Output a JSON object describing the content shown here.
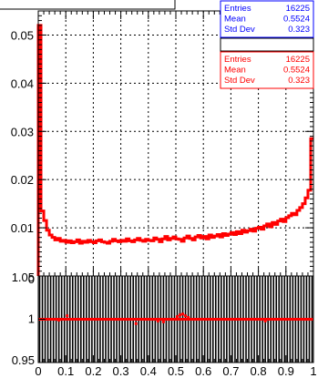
{
  "chart_data": [
    {
      "type": "bar",
      "subtype": "histogram-step",
      "xlim": [
        0,
        1
      ],
      "ylim": [
        0,
        0.055
      ],
      "grid": true,
      "x_ticks": [
        "0",
        "0.1",
        "0.2",
        "0.3",
        "0.4",
        "0.5",
        "0.6",
        "0.7",
        "0.8",
        "0.9",
        "1"
      ],
      "y_ticks": [
        "0",
        "0.01",
        "0.02",
        "0.03",
        "0.04",
        "0.05"
      ],
      "bin_count": 100,
      "series": [
        {
          "color": "#ff0000",
          "values": [
            0.052,
            0.0135,
            0.0115,
            0.0095,
            0.0085,
            0.008,
            0.0075,
            0.0078,
            0.0072,
            0.0074,
            0.007,
            0.0073,
            0.0069,
            0.0071,
            0.0075,
            0.0068,
            0.0072,
            0.007,
            0.0074,
            0.0071,
            0.0069,
            0.0073,
            0.0075,
            0.0071,
            0.007,
            0.0068,
            0.0072,
            0.0076,
            0.0073,
            0.0071,
            0.0074,
            0.0072,
            0.0077,
            0.0073,
            0.0071,
            0.0075,
            0.0078,
            0.0074,
            0.0072,
            0.0076,
            0.0074,
            0.0073,
            0.0079,
            0.0076,
            0.0071,
            0.0077,
            0.0082,
            0.0075,
            0.0078,
            0.0081,
            0.0077,
            0.0076,
            0.0072,
            0.0079,
            0.0083,
            0.0078,
            0.0075,
            0.0081,
            0.0084,
            0.0079,
            0.0082,
            0.0077,
            0.0085,
            0.008,
            0.0083,
            0.0086,
            0.0081,
            0.0088,
            0.0084,
            0.0087,
            0.009,
            0.0086,
            0.0092,
            0.0088,
            0.0095,
            0.0091,
            0.0094,
            0.0097,
            0.0093,
            0.0099,
            0.0101,
            0.0097,
            0.0104,
            0.0108,
            0.0102,
            0.0111,
            0.0107,
            0.0114,
            0.0118,
            0.0113,
            0.0121,
            0.0125,
            0.013,
            0.0127,
            0.0136,
            0.0142,
            0.015,
            0.0162,
            0.0178,
            0.0285
          ]
        }
      ]
    },
    {
      "type": "scatter",
      "subtype": "ratio",
      "xlim": [
        0,
        1
      ],
      "ylim": [
        0.95,
        1.05
      ],
      "y_ticks": [
        "0.95",
        "1",
        "1.05"
      ],
      "series": [
        {
          "color": "#ff0000",
          "values": [
            1.0,
            1.0,
            1.0,
            1.0,
            1.0,
            1.0,
            1.0,
            0.999,
            1.0,
            1.0,
            1.004,
            1.0,
            1.0,
            1.0,
            1.0,
            1.0,
            1.0,
            1.0,
            1.0,
            1.0,
            1.0,
            1.0,
            1.0,
            1.0,
            1.0,
            1.0,
            1.0,
            1.0,
            1.0,
            1.0,
            1.0,
            1.0,
            1.0,
            1.0,
            1.0,
            0.995,
            1.0,
            1.0,
            1.0,
            1.0,
            1.0,
            1.0,
            1.0,
            0.998,
            1.0,
            0.997,
            1.0,
            1.0,
            1.0,
            1.0,
            1.003,
            1.005,
            1.006,
            1.004,
            1.002,
            1.0,
            1.0,
            1.0,
            1.0,
            1.0,
            1.0,
            1.0,
            1.0,
            1.0,
            1.0,
            1.0,
            1.0,
            1.0,
            1.0,
            1.0,
            1.0,
            1.0,
            1.0,
            1.0,
            1.0,
            1.0,
            1.0,
            1.0,
            1.0,
            1.0,
            1.0,
            1.0,
            0.998,
            1.0,
            1.0,
            1.0,
            1.0,
            1.0,
            1.0,
            1.0,
            1.0,
            1.0,
            1.0,
            1.0,
            1.0,
            1.0,
            1.0,
            1.0,
            1.0,
            1.0
          ]
        }
      ]
    }
  ],
  "stat_boxes": [
    {
      "color": "#0000ff",
      "rows": [
        {
          "label": "Entries",
          "value": "16225"
        },
        {
          "label": "Mean",
          "value": "0.5524"
        },
        {
          "label": "Std Dev",
          "value": "0.323"
        }
      ]
    },
    {
      "color": "#ff0000",
      "rows": [
        {
          "label": "Entries",
          "value": "16225"
        },
        {
          "label": "Mean",
          "value": "0.5524"
        },
        {
          "label": "Std Dev",
          "value": "0.323"
        }
      ]
    }
  ]
}
